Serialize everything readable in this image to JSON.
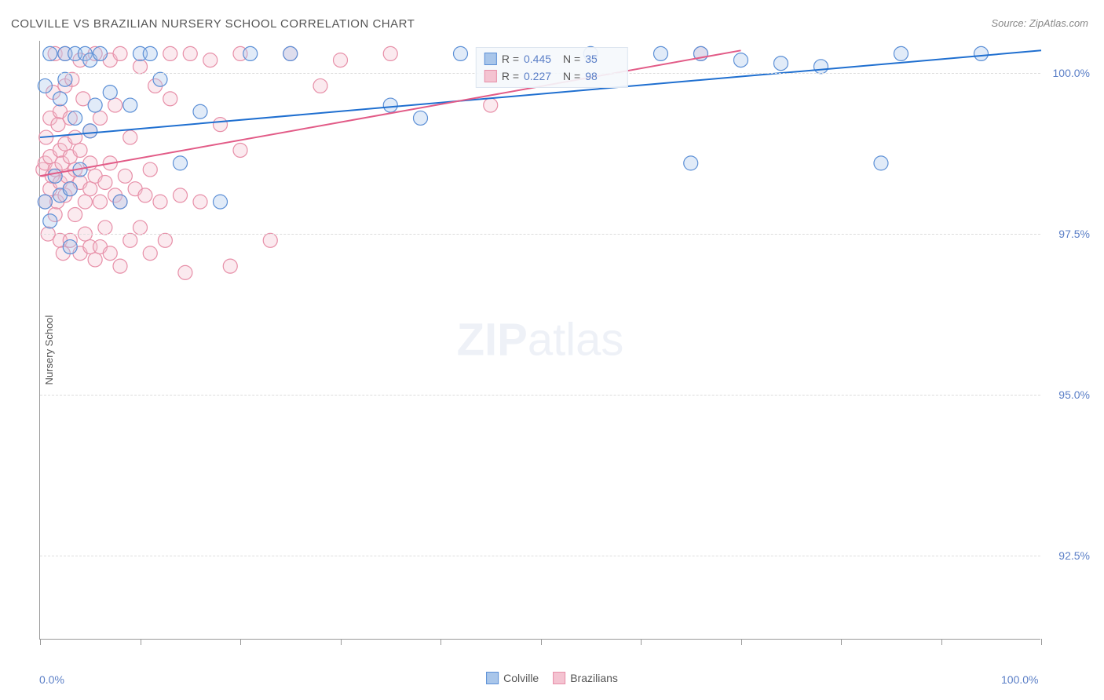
{
  "title": "COLVILLE VS BRAZILIAN NURSERY SCHOOL CORRELATION CHART",
  "source": "Source: ZipAtlas.com",
  "watermark": {
    "bold": "ZIP",
    "rest": "atlas"
  },
  "y_axis_label": "Nursery School",
  "chart": {
    "type": "scatter",
    "xlim": [
      0,
      100
    ],
    "ylim": [
      91.2,
      100.5
    ],
    "x_ticks": [
      0,
      10,
      20,
      30,
      40,
      50,
      60,
      70,
      80,
      90,
      100
    ],
    "x_tick_labels": {
      "0": "0.0%",
      "100": "100.0%"
    },
    "y_ticks": [
      92.5,
      95.0,
      97.5,
      100.0
    ],
    "y_tick_labels": [
      "92.5%",
      "95.0%",
      "97.5%",
      "100.0%"
    ],
    "background_color": "#ffffff",
    "grid_color": "#dddddd",
    "axis_color": "#999999",
    "marker_radius": 9,
    "marker_fill_opacity": 0.35,
    "marker_stroke_width": 1.2,
    "trend_line_width": 2
  },
  "series": [
    {
      "name": "Colville",
      "color_stroke": "#5b8fd6",
      "color_fill": "#a9c6ea",
      "trend_color": "#1f6fd0",
      "R": "0.445",
      "N": "35",
      "trend": {
        "x1": 0,
        "y1": 99.0,
        "x2": 100,
        "y2": 100.35
      },
      "points": [
        [
          0.5,
          98.0
        ],
        [
          0.5,
          99.8
        ],
        [
          1,
          97.7
        ],
        [
          1,
          100.3
        ],
        [
          1.5,
          98.4
        ],
        [
          2,
          98.1
        ],
        [
          2,
          99.6
        ],
        [
          2.5,
          99.9
        ],
        [
          2.5,
          100.3
        ],
        [
          3,
          97.3
        ],
        [
          3,
          98.2
        ],
        [
          3.5,
          99.3
        ],
        [
          3.5,
          100.3
        ],
        [
          4,
          98.5
        ],
        [
          4.5,
          100.3
        ],
        [
          5,
          99.1
        ],
        [
          5,
          100.2
        ],
        [
          5.5,
          99.5
        ],
        [
          6,
          100.3
        ],
        [
          7,
          99.7
        ],
        [
          8,
          98.0
        ],
        [
          9,
          99.5
        ],
        [
          10,
          100.3
        ],
        [
          11,
          100.3
        ],
        [
          12,
          99.9
        ],
        [
          14,
          98.6
        ],
        [
          16,
          99.4
        ],
        [
          18,
          98.0
        ],
        [
          21,
          100.3
        ],
        [
          25,
          100.3
        ],
        [
          35,
          99.5
        ],
        [
          38,
          99.3
        ],
        [
          42,
          100.3
        ],
        [
          55,
          100.3
        ],
        [
          62,
          100.3
        ],
        [
          65,
          98.6
        ],
        [
          66,
          100.3
        ],
        [
          70,
          100.2
        ],
        [
          74,
          100.15
        ],
        [
          78,
          100.1
        ],
        [
          84,
          98.6
        ],
        [
          86,
          100.3
        ],
        [
          94,
          100.3
        ]
      ]
    },
    {
      "name": "Brazilians",
      "color_stroke": "#e78fa8",
      "color_fill": "#f4c3d1",
      "trend_color": "#e25b87",
      "R": "0.227",
      "N": "98",
      "trend": {
        "x1": 0,
        "y1": 98.4,
        "x2": 70,
        "y2": 100.35
      },
      "points": [
        [
          0.3,
          98.5
        ],
        [
          0.5,
          98.0
        ],
        [
          0.5,
          98.6
        ],
        [
          0.6,
          99.0
        ],
        [
          0.8,
          97.5
        ],
        [
          1,
          98.2
        ],
        [
          1,
          98.7
        ],
        [
          1,
          99.3
        ],
        [
          1.2,
          98.4
        ],
        [
          1.3,
          99.7
        ],
        [
          1.5,
          97.8
        ],
        [
          1.5,
          98.5
        ],
        [
          1.5,
          100.3
        ],
        [
          1.7,
          98.0
        ],
        [
          1.8,
          99.2
        ],
        [
          2,
          97.4
        ],
        [
          2,
          98.3
        ],
        [
          2,
          98.8
        ],
        [
          2,
          99.4
        ],
        [
          2.2,
          98.6
        ],
        [
          2.3,
          97.2
        ],
        [
          2.5,
          98.1
        ],
        [
          2.5,
          98.9
        ],
        [
          2.5,
          99.8
        ],
        [
          2.5,
          100.3
        ],
        [
          2.7,
          98.4
        ],
        [
          3,
          97.4
        ],
        [
          3,
          98.2
        ],
        [
          3,
          98.7
        ],
        [
          3,
          99.3
        ],
        [
          3.2,
          99.9
        ],
        [
          3.5,
          97.8
        ],
        [
          3.5,
          98.5
        ],
        [
          3.5,
          99.0
        ],
        [
          4,
          97.2
        ],
        [
          4,
          98.3
        ],
        [
          4,
          98.8
        ],
        [
          4,
          100.2
        ],
        [
          4.3,
          99.6
        ],
        [
          4.5,
          97.5
        ],
        [
          4.5,
          98.0
        ],
        [
          5,
          97.3
        ],
        [
          5,
          98.2
        ],
        [
          5,
          98.6
        ],
        [
          5,
          99.1
        ],
        [
          5.5,
          97.1
        ],
        [
          5.5,
          98.4
        ],
        [
          5.5,
          100.3
        ],
        [
          6,
          97.3
        ],
        [
          6,
          98.0
        ],
        [
          6,
          99.3
        ],
        [
          6.5,
          97.6
        ],
        [
          6.5,
          98.3
        ],
        [
          7,
          97.2
        ],
        [
          7,
          98.6
        ],
        [
          7,
          100.2
        ],
        [
          7.5,
          98.1
        ],
        [
          7.5,
          99.5
        ],
        [
          8,
          97.0
        ],
        [
          8,
          98.0
        ],
        [
          8,
          100.3
        ],
        [
          8.5,
          98.4
        ],
        [
          9,
          97.4
        ],
        [
          9,
          99.0
        ],
        [
          9.5,
          98.2
        ],
        [
          10,
          97.6
        ],
        [
          10,
          100.1
        ],
        [
          10.5,
          98.1
        ],
        [
          11,
          97.2
        ],
        [
          11,
          98.5
        ],
        [
          11.5,
          99.8
        ],
        [
          12,
          98.0
        ],
        [
          12.5,
          97.4
        ],
        [
          13,
          99.6
        ],
        [
          13,
          100.3
        ],
        [
          14,
          98.1
        ],
        [
          14.5,
          96.9
        ],
        [
          15,
          100.3
        ],
        [
          16,
          98.0
        ],
        [
          17,
          100.2
        ],
        [
          18,
          99.2
        ],
        [
          19,
          97.0
        ],
        [
          20,
          98.8
        ],
        [
          20,
          100.3
        ],
        [
          23,
          97.4
        ],
        [
          25,
          100.3
        ],
        [
          28,
          99.8
        ],
        [
          30,
          100.2
        ],
        [
          35,
          100.3
        ],
        [
          45,
          99.5
        ],
        [
          66,
          100.3
        ]
      ]
    }
  ],
  "legend_bottom": [
    {
      "label": "Colville",
      "stroke": "#5b8fd6",
      "fill": "#a9c6ea"
    },
    {
      "label": "Brazilians",
      "stroke": "#e78fa8",
      "fill": "#f4c3d1"
    }
  ],
  "legend_top_labels": {
    "R": "R =",
    "N": "N ="
  }
}
